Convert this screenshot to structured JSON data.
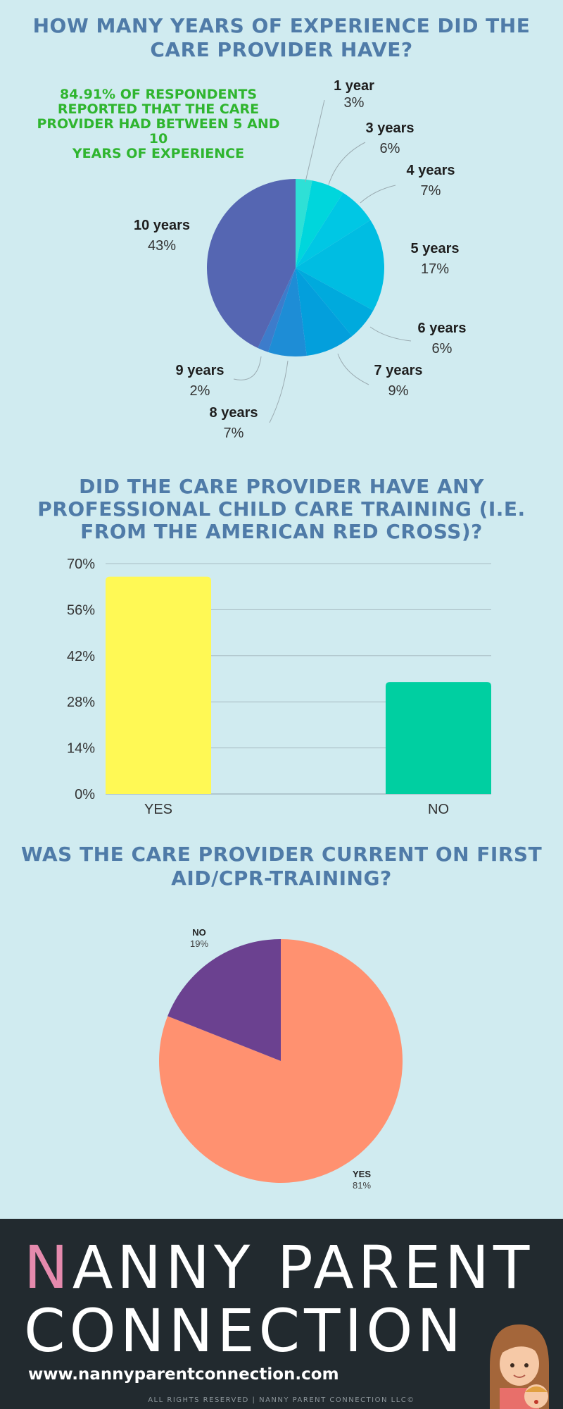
{
  "section1": {
    "title_line1": "HOW MANY YEARS OF EXPERIENCE DID THE",
    "title_line2": "CARE PROVIDER HAVE?",
    "note_lines": [
      "84.91% OF RESPONDENTS",
      "REPORTED THAT THE CARE",
      "PROVIDER HAD BETWEEN 5 AND 10",
      "YEARS OF EXPERIENCE"
    ]
  },
  "section2": {
    "title_line1": "DID THE CARE PROVIDER HAVE ANY",
    "title_line2": "PROFESSIONAL CHILD CARE TRAINING (I.E.",
    "title_line3": "FROM THE AMERICAN RED CROSS)?"
  },
  "section3": {
    "title_line1": "WAS THE CARE PROVIDER CURRENT ON FIRST",
    "title_line2": "AID/CPR-TRAINING?"
  },
  "footer": {
    "brand_initial": "N",
    "brand_rest": "ANNY PARENT",
    "brand_line2": "CONNECTION",
    "url": "www.nannyparentconnection.com",
    "rights": "ALL RIGHTS RESERVED | NANNY PARENT CONNECTION LLC©"
  },
  "colors": {
    "title": "#4f7ba8",
    "note": "#2fb52f",
    "background": "#d0ebf0",
    "footer_bg": "#222a2f",
    "brand_highlight": "#e58aad"
  },
  "chart_data": [
    {
      "type": "pie",
      "title": "HOW MANY YEARS OF EXPERIENCE DID THE CARE PROVIDER HAVE?",
      "slices": [
        {
          "label": "1 year",
          "value": 3,
          "value_label": "3%",
          "color": "#2ee0d6"
        },
        {
          "label": "3 years",
          "value": 6,
          "value_label": "6%",
          "color": "#00d6dc"
        },
        {
          "label": "4 years",
          "value": 7,
          "value_label": "7%",
          "color": "#00c7e4"
        },
        {
          "label": "5 years",
          "value": 17,
          "value_label": "17%",
          "color": "#00bde2"
        },
        {
          "label": "6 years",
          "value": 6,
          "value_label": "6%",
          "color": "#00aadd"
        },
        {
          "label": "7 years",
          "value": 9,
          "value_label": "9%",
          "color": "#039fdc"
        },
        {
          "label": "8 years",
          "value": 7,
          "value_label": "7%",
          "color": "#1e8dd6"
        },
        {
          "label": "9 years",
          "value": 2,
          "value_label": "2%",
          "color": "#3d7ccb"
        },
        {
          "label": "10 years",
          "value": 43,
          "value_label": "43%",
          "color": "#5566b2"
        }
      ]
    },
    {
      "type": "bar",
      "title": "DID THE CARE PROVIDER HAVE ANY PROFESSIONAL CHILD CARE TRAINING (I.E. FROM THE AMERICAN RED CROSS)?",
      "categories": [
        "YES",
        "NO"
      ],
      "values": [
        66,
        34
      ],
      "colors": [
        "#fff955",
        "#00cfa1"
      ],
      "ylim": [
        0,
        70
      ],
      "yticks": [
        0,
        14,
        28,
        42,
        56,
        70
      ],
      "ytick_labels": [
        "0%",
        "14%",
        "28%",
        "42%",
        "56%",
        "70%"
      ],
      "grid": true
    },
    {
      "type": "pie",
      "title": "WAS THE CARE PROVIDER CURRENT ON FIRST AID/CPR-TRAINING?",
      "slices": [
        {
          "label": "YES",
          "value": 81,
          "value_label": "81%",
          "color": "#ff9170"
        },
        {
          "label": "NO",
          "value": 19,
          "value_label": "19%",
          "color": "#6b4190"
        }
      ]
    }
  ]
}
